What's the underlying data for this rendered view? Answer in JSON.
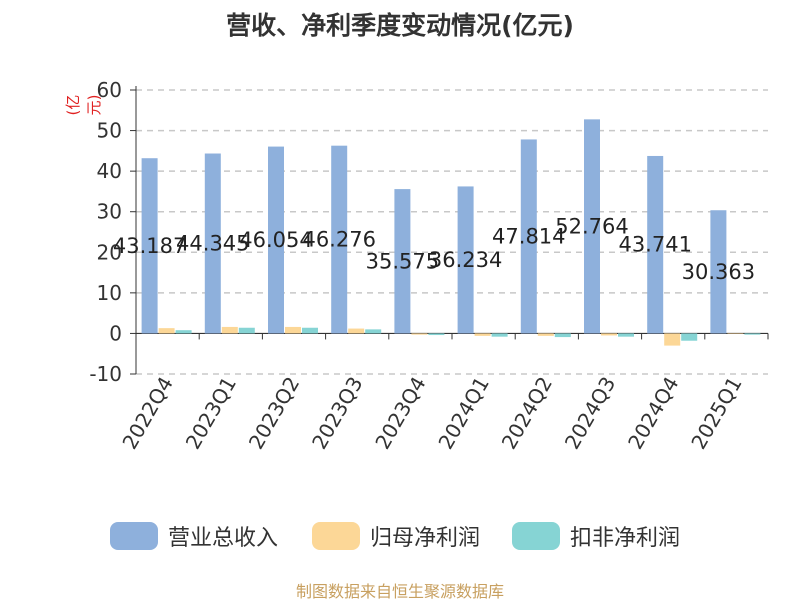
{
  "title": "营收、净利季度变动情况(亿元)",
  "unit_label": "(亿元)",
  "source_label": "制图数据来自恒生聚源数据库",
  "chart_data": {
    "type": "bar",
    "title": "营收、净利季度变动情况(亿元)",
    "ylabel": "(亿元)",
    "xlabel": "",
    "ylim": [
      -10,
      60
    ],
    "yticks": [
      60,
      50,
      40,
      30,
      20,
      10,
      0,
      -10
    ],
    "grid": true,
    "legend_position": "bottom",
    "categories": [
      "2022Q4",
      "2023Q1",
      "2023Q2",
      "2023Q3",
      "2023Q4",
      "2024Q1",
      "2024Q2",
      "2024Q3",
      "2024Q4",
      "2025Q1"
    ],
    "series": [
      {
        "name": "营业总收入",
        "color": "#8eb0dc",
        "values": [
          43.187,
          44.345,
          46.054,
          46.276,
          35.575,
          36.234,
          47.814,
          52.764,
          43.741,
          30.363
        ],
        "data_labels": [
          "43.187",
          "44.345",
          "46.054",
          "46.276",
          "35.575",
          "36.234",
          "47.814",
          "52.764",
          "43.741",
          "30.363"
        ]
      },
      {
        "name": "归母净利润",
        "color": "#fcd797",
        "values": [
          1.3,
          1.6,
          1.6,
          1.2,
          -0.3,
          -0.6,
          -0.6,
          -0.5,
          -3.0,
          -0.1
        ]
      },
      {
        "name": "扣非净利润",
        "color": "#86d4d4",
        "values": [
          0.8,
          1.4,
          1.4,
          1.0,
          -0.4,
          -0.8,
          -0.9,
          -0.8,
          -1.8,
          -0.3
        ]
      }
    ]
  }
}
